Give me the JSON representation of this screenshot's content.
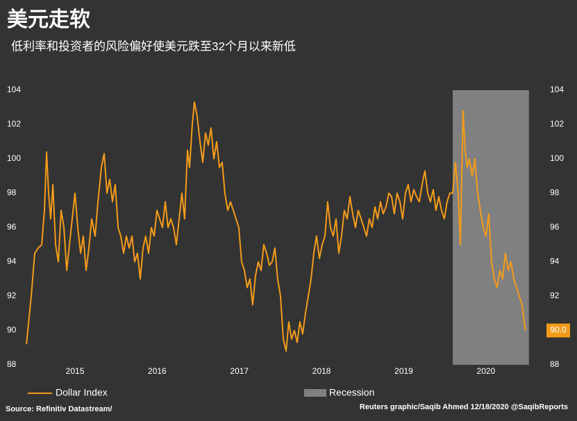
{
  "chart_data": {
    "type": "line",
    "title": "美元走软",
    "subtitle": "低利率和投资者的风险偏好使美元跌至32个月以来新低",
    "source": "Source: Refinitiv Datastream/",
    "credit": "Reuters graphic/Saqib Ahmed 12/18/2020 @SaqibReports",
    "x": [
      2014.409,
      2014.468,
      2014.51,
      2014.552,
      2014.595,
      2014.628,
      2014.654,
      2014.679,
      2014.704,
      2014.73,
      2014.764,
      2014.797,
      2014.831,
      2014.865,
      2014.899,
      2014.932,
      2014.966,
      2015.0,
      2015.034,
      2015.068,
      2015.101,
      2015.135,
      2015.169,
      2015.203,
      2015.245,
      2015.279,
      2015.321,
      2015.355,
      2015.389,
      2015.422,
      2015.456,
      2015.49,
      2015.524,
      2015.557,
      2015.591,
      2015.625,
      2015.659,
      2015.693,
      2015.726,
      2015.76,
      2015.794,
      2015.828,
      2015.861,
      2015.895,
      2015.929,
      2015.963,
      2015.997,
      2016.03,
      2016.064,
      2016.098,
      2016.132,
      2016.166,
      2016.199,
      2016.233,
      2016.267,
      2016.301,
      2016.334,
      2016.368,
      2016.394,
      2016.427,
      2016.453,
      2016.486,
      2016.52,
      2016.554,
      2016.588,
      2016.622,
      2016.655,
      2016.689,
      2016.723,
      2016.757,
      2016.791,
      2016.824,
      2016.858,
      2016.892,
      2016.926,
      2016.959,
      2016.993,
      2017.027,
      2017.061,
      2017.095,
      2017.128,
      2017.162,
      2017.196,
      2017.23,
      2017.264,
      2017.297,
      2017.331,
      2017.365,
      2017.399,
      2017.432,
      2017.466,
      2017.5,
      2017.534,
      2017.568,
      2017.601,
      2017.635,
      2017.669,
      2017.703,
      2017.736,
      2017.77,
      2017.804,
      2017.838,
      2017.872,
      2017.905,
      2017.939,
      2017.973,
      2018.007,
      2018.041,
      2018.074,
      2018.108,
      2018.142,
      2018.176,
      2018.209,
      2018.243,
      2018.277,
      2018.311,
      2018.345,
      2018.378,
      2018.412,
      2018.446,
      2018.48,
      2018.514,
      2018.547,
      2018.581,
      2018.615,
      2018.649,
      2018.682,
      2018.716,
      2018.75,
      2018.784,
      2018.818,
      2018.851,
      2018.885,
      2018.919,
      2018.953,
      2018.986,
      2019.02,
      2019.054,
      2019.088,
      2019.122,
      2019.155,
      2019.189,
      2019.223,
      2019.257,
      2019.291,
      2019.324,
      2019.358,
      2019.392,
      2019.426,
      2019.459,
      2019.493,
      2019.527,
      2019.561,
      2019.595,
      2019.628,
      2019.662,
      2019.688,
      2019.705,
      2019.721,
      2019.747,
      2019.772,
      2019.797,
      2019.831,
      2019.865,
      2019.899,
      2019.932,
      2019.966,
      2020.0,
      2020.034,
      2020.068,
      2020.101,
      2020.135,
      2020.169,
      2020.203,
      2020.236,
      2020.27,
      2020.304,
      2020.338,
      2020.372,
      2020.405,
      2020.439,
      2020.465,
      2020.481
    ],
    "series": [
      {
        "name": "Dollar Index",
        "color": "#f39c1a",
        "last_value_label": "90.0",
        "values": [
          89.2,
          92,
          94.5,
          94.8,
          95,
          97,
          100.4,
          98,
          96.5,
          98.5,
          95,
          94,
          97,
          96,
          93.5,
          95,
          96.5,
          98,
          96,
          94.5,
          95.5,
          93.5,
          94.8,
          96.5,
          95.5,
          97.5,
          99.5,
          100.3,
          98,
          98.8,
          97.5,
          98.5,
          96,
          95.5,
          94.5,
          95.5,
          94.8,
          95.5,
          94,
          94.5,
          93,
          94.8,
          95.5,
          94.5,
          96,
          95.5,
          97,
          96.5,
          96,
          97.5,
          96,
          96.5,
          96,
          95,
          96.5,
          98,
          96.5,
          100.5,
          99.5,
          102,
          103.3,
          102.5,
          101,
          99.8,
          101.5,
          100.8,
          101.8,
          100,
          101,
          99.5,
          99.8,
          98,
          97,
          97.5,
          97,
          96.5,
          96,
          94,
          93.5,
          92.5,
          93,
          91.5,
          93.2,
          94,
          93.5,
          95,
          94.5,
          93.8,
          94,
          94.8,
          93,
          92,
          89.5,
          88.8,
          90.5,
          89.5,
          90,
          89.3,
          90.5,
          89.8,
          91,
          92,
          93,
          94.5,
          95.5,
          94.2,
          95,
          95.5,
          97.5,
          96,
          95.5,
          96.5,
          94.5,
          95.5,
          97,
          96.5,
          97.8,
          96.8,
          96,
          97,
          96.5,
          96,
          95.5,
          96.5,
          96,
          97.2,
          96.5,
          97.5,
          96.8,
          97.2,
          98,
          97.8,
          96.8,
          98,
          97.5,
          96.5,
          98,
          98.5,
          97.5,
          98.2,
          97.8,
          97.5,
          98.5,
          99.3,
          98,
          97.5,
          98.2,
          97,
          97.8,
          97,
          96.5,
          97.5,
          98,
          98,
          99.8,
          98,
          95,
          99,
          102.8,
          100.5,
          99.5,
          100,
          99,
          100,
          98,
          97,
          96,
          95.5,
          96.8,
          94,
          93,
          92.5,
          93.5,
          93,
          94.5,
          93.5,
          94,
          93,
          92.5,
          92,
          91.5,
          90.5,
          90.0
        ]
      }
    ],
    "recession": {
      "label": "Recession",
      "color": "#808080",
      "x": [
        2019.595,
        2020.523
      ]
    },
    "xlim": [
      2014.4,
      2020.55
    ],
    "xticks": [
      2015,
      2016,
      2017,
      2018,
      2019,
      2020
    ],
    "ylim": [
      88,
      104
    ],
    "yticks": [
      88,
      90,
      92,
      94,
      96,
      98,
      100,
      102,
      104
    ],
    "y2lim": [
      88,
      104
    ],
    "y2ticks": [
      88,
      90,
      92,
      94,
      96,
      98,
      100,
      102,
      104
    ],
    "grid": false
  }
}
